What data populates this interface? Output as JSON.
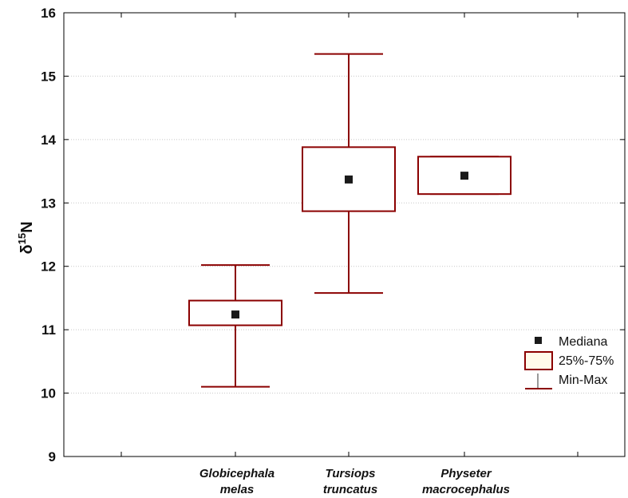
{
  "chart_data": {
    "type": "boxplot",
    "title": "",
    "xlabel": "",
    "ylabel": {
      "prefix": "δ",
      "superscript": "15",
      "suffix": "N"
    },
    "ylim": [
      9,
      16
    ],
    "yticks": [
      9,
      10,
      11,
      12,
      13,
      14,
      15,
      16
    ],
    "grid": "horizontal dotted",
    "categories": [
      {
        "line1": "Globicephala",
        "line2": "melas"
      },
      {
        "line1": "Tursiops",
        "line2": "truncatus"
      },
      {
        "line1": "Physeter",
        "line2": "macrocephalus"
      }
    ],
    "series": [
      {
        "min": 10.1,
        "q1": 11.07,
        "median": 11.24,
        "q3": 11.46,
        "max": 12.02
      },
      {
        "min": 11.58,
        "q1": 12.87,
        "median": 13.37,
        "q3": 13.88,
        "max": 15.35
      },
      {
        "min": 13.14,
        "q1": 13.14,
        "median": 13.43,
        "q3": 13.73,
        "max": 13.73
      }
    ],
    "legend": {
      "position": "right",
      "items": [
        {
          "key": "median",
          "label": "Mediana"
        },
        {
          "key": "box",
          "label": "25%-75%"
        },
        {
          "key": "whisker",
          "label": "Min-Max"
        }
      ]
    },
    "colors": {
      "box": "#8b0000",
      "box_fill": "#ffffff",
      "legend_box_fill": "#fffbea",
      "median": "#1a1a1a",
      "axis": "#000000",
      "grid": "#c8c8c8"
    }
  }
}
